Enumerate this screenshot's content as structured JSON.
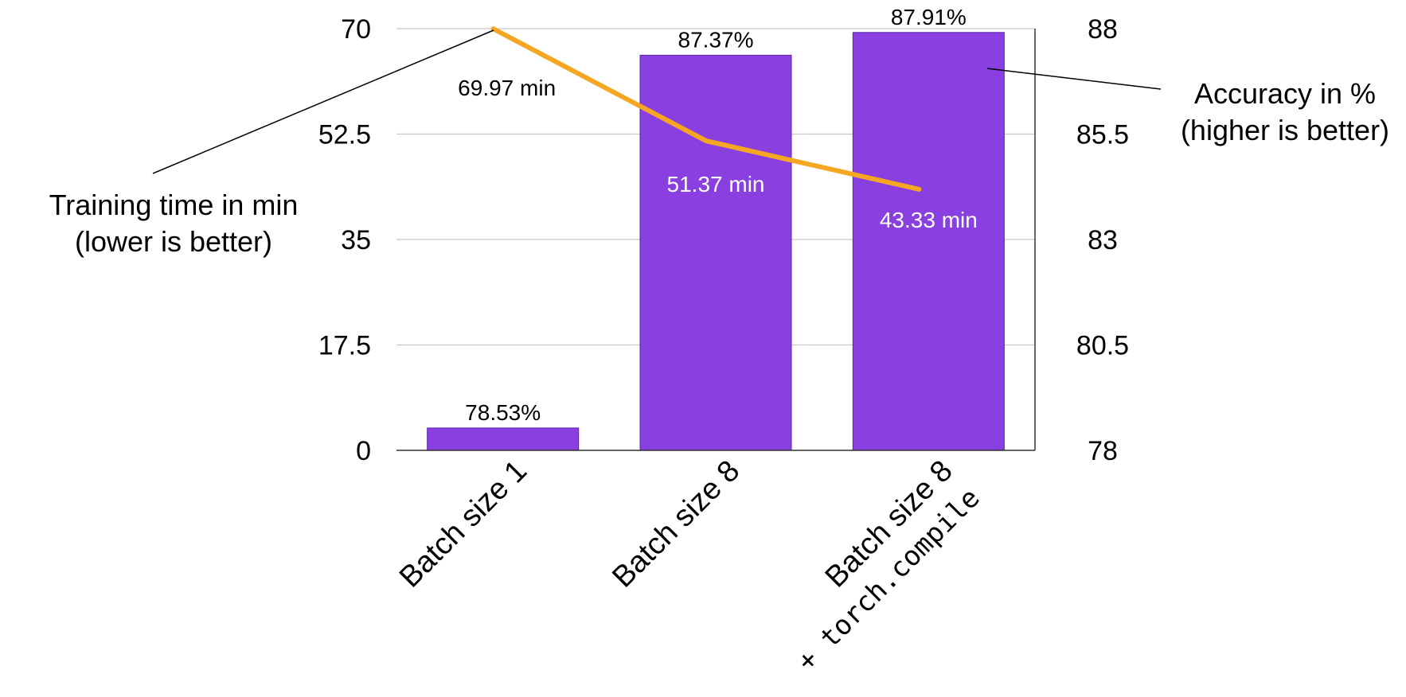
{
  "chart_data": {
    "type": "bar",
    "categories": [
      "Batch size 1",
      "Batch size 8",
      "Batch size 8 + torch.compile"
    ],
    "category_lines": [
      [
        "Batch size 1"
      ],
      [
        "Batch size 8"
      ],
      [
        "Batch size 8",
        "+ torch.compile"
      ]
    ],
    "series": [
      {
        "name": "Accuracy in %",
        "kind": "bar",
        "axis": "right",
        "values": [
          78.53,
          87.37,
          87.91
        ],
        "labels": [
          "78.53%",
          "87.37%",
          "87.91%"
        ],
        "color": "#8a3fe0"
      },
      {
        "name": "Training time in min",
        "kind": "line",
        "axis": "left",
        "values": [
          69.97,
          51.37,
          43.33
        ],
        "labels": [
          "69.97 min",
          "51.37 min",
          "43.33 min"
        ],
        "color": "#f5a623"
      }
    ],
    "left_axis": {
      "caption_lines": [
        "Training time in min",
        "(lower is better)"
      ],
      "ticks": [
        0,
        17.5,
        35,
        52.5,
        70
      ],
      "tick_labels": [
        "0",
        "17.5",
        "35",
        "52.5",
        "70"
      ],
      "ylim": [
        0,
        70
      ]
    },
    "right_axis": {
      "caption_lines": [
        "Accuracy in %",
        "(higher is better)"
      ],
      "ticks": [
        78,
        80.5,
        83,
        85.5,
        88
      ],
      "tick_labels": [
        "78",
        "80.5",
        "83",
        "85.5",
        "88"
      ],
      "ylim": [
        78,
        88
      ]
    },
    "grid": true,
    "legend": "none",
    "colors": {
      "bar": "#8a3fe0",
      "line": "#f5a623",
      "grid": "#c8c8c8",
      "axis": "#333333"
    }
  }
}
